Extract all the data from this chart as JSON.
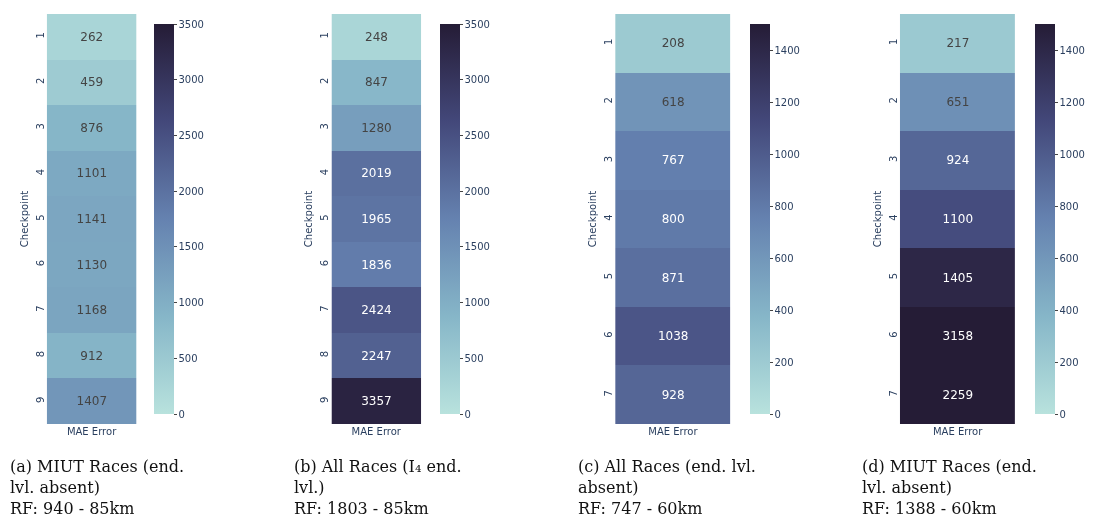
{
  "chart_data": [
    {
      "type": "heatmap",
      "categories": [
        "MAE Error"
      ],
      "y_categories": [
        "1",
        "2",
        "3",
        "4",
        "5",
        "6",
        "7",
        "8",
        "9"
      ],
      "cells": [
        [
          262
        ],
        [
          459
        ],
        [
          876
        ],
        [
          1101
        ],
        [
          1141
        ],
        [
          1130
        ],
        [
          1168
        ],
        [
          912
        ],
        [
          1407
        ]
      ],
      "clim": [
        0,
        3500
      ],
      "cticks": [
        0,
        500,
        1000,
        1500,
        2000,
        2500,
        3000,
        3500
      ],
      "data_labels": true,
      "ylabel": "Checkpoint",
      "annotations": [
        "(a) MIUT Races (end.\nlvl. absent)\nRF: 940 - 85km"
      ]
    },
    {
      "type": "heatmap",
      "categories": [
        "MAE Error"
      ],
      "y_categories": [
        "1",
        "2",
        "3",
        "4",
        "5",
        "6",
        "7",
        "8",
        "9"
      ],
      "cells": [
        [
          248
        ],
        [
          847
        ],
        [
          1280
        ],
        [
          2019
        ],
        [
          1965
        ],
        [
          1836
        ],
        [
          2424
        ],
        [
          2247
        ],
        [
          3357
        ]
      ],
      "clim": [
        0,
        3500
      ],
      "cticks": [
        0,
        500,
        1000,
        1500,
        2000,
        2500,
        3000,
        3500
      ],
      "data_labels": true,
      "ylabel": "Checkpoint",
      "annotations": [
        "(b) All Races (I₄ end.\nlvl.)\nRF: 1803 - 85km"
      ]
    },
    {
      "type": "heatmap",
      "categories": [
        "MAE Error"
      ],
      "y_categories": [
        "1",
        "2",
        "3",
        "4",
        "5",
        "6",
        "7"
      ],
      "cells": [
        [
          208
        ],
        [
          618
        ],
        [
          767
        ],
        [
          800
        ],
        [
          871
        ],
        [
          1038
        ],
        [
          928
        ]
      ],
      "clim": [
        0,
        1500
      ],
      "cticks": [
        0,
        200,
        400,
        600,
        800,
        1000,
        1200,
        1400
      ],
      "data_labels": true,
      "ylabel": "Checkpoint",
      "annotations": [
        "(c) All Races (end. lvl.\nabsent)\nRF: 747 - 60km"
      ]
    },
    {
      "type": "heatmap",
      "categories": [
        "MAE Error"
      ],
      "y_categories": [
        "1",
        "2",
        "3",
        "4",
        "5",
        "6",
        "7"
      ],
      "cells": [
        [
          217
        ],
        [
          651
        ],
        [
          924
        ],
        [
          1100
        ],
        [
          1405
        ],
        [
          3158
        ],
        [
          2259
        ]
      ],
      "clim": [
        0,
        1500
      ],
      "cticks": [
        0,
        200,
        400,
        600,
        800,
        1000,
        1200,
        1400
      ],
      "data_labels": true,
      "ylabel": "Checkpoint",
      "annotations": [
        "(d) MIUT Races (end.\nlvl. absent)\nRF: 1388 - 60km"
      ]
    }
  ]
}
